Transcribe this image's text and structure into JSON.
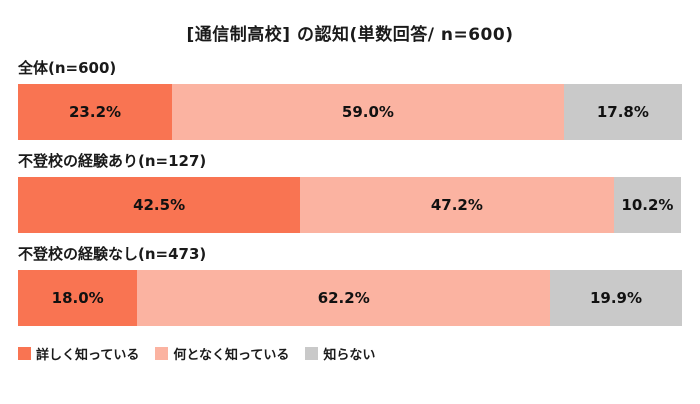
{
  "title": "[通信制高校] の認知(単数回答/ n=600)",
  "chart_data": {
    "type": "bar",
    "stacked": true,
    "orientation": "horizontal",
    "value_unit": "%",
    "xlim": [
      0,
      100
    ],
    "grid": false,
    "colors": [
      "#F97452",
      "#FBB3A1",
      "#C9C9C9"
    ],
    "series_names": [
      "詳しく知っている",
      "何となく知っている",
      "知らない"
    ],
    "groups": [
      {
        "label": "全体(n=600)",
        "values": [
          23.2,
          59.0,
          17.8
        ]
      },
      {
        "label": "不登校の経験あり(n=127)",
        "values": [
          42.5,
          47.2,
          10.2
        ]
      },
      {
        "label": "不登校の経験なし(n=473)",
        "values": [
          18.0,
          62.2,
          19.9
        ]
      }
    ]
  },
  "legend": {
    "position": "bottom-left",
    "items": [
      {
        "label": "詳しく知っている",
        "color": "#F97452"
      },
      {
        "label": "何となく知っている",
        "color": "#FBB3A1"
      },
      {
        "label": "知らない",
        "color": "#C9C9C9"
      }
    ]
  }
}
